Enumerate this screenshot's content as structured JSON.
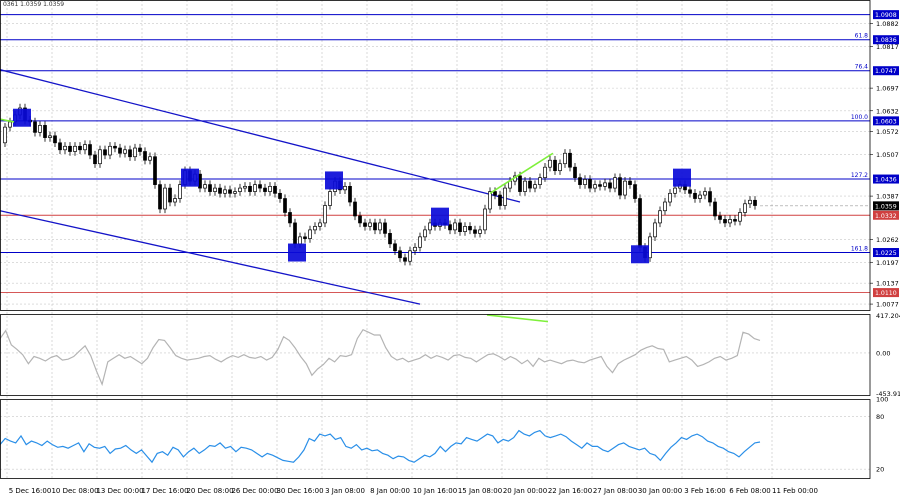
{
  "header": {
    "ohlc_text": "0361 1.0359 1.0359"
  },
  "colors": {
    "background": "#ffffff",
    "grid": "#c8c8c8",
    "level_line": "#0000c8",
    "support_line": "#d04040",
    "price_marker": "#000000",
    "candle": "#000000",
    "channel": "#1414c8",
    "box": "#0a0ad8",
    "divergence": "#7ef03a",
    "cci": "#b4b4b4",
    "rsi": "#2a8fe8"
  },
  "chart_data": [
    {
      "type": "candlestick",
      "title": "",
      "ylim": [
        1.006,
        1.095
      ],
      "yticks": [
        "1.0882",
        "1.0817",
        "1.0697",
        "1.0632",
        "1.0572",
        "1.0507",
        "1.0387",
        "1.0262",
        "1.0197",
        "1.0137",
        "1.0077"
      ],
      "xticks": [
        "5 Dec 16:00",
        "10 Dec 08:00",
        "13 Dec 00:00",
        "17 Dec 16:00",
        "20 Dec 08:00",
        "26 Dec 00:00",
        "30 Dec 16:00",
        "3 Jan 08:00",
        "8 Jan 00:00",
        "10 Jan 16:00",
        "15 Jan 08:00",
        "20 Jan 00:00",
        "22 Jan 16:00",
        "27 Jan 08:00",
        "30 Jan 00:00",
        "3 Feb 16:00",
        "6 Feb 08:00",
        "11 Feb 00:00"
      ],
      "fib_levels": [
        {
          "label": "",
          "value": 1.0908,
          "tag": "1.0908"
        },
        {
          "label": "61.8",
          "value": 1.0836,
          "tag": "1.0836"
        },
        {
          "label": "76.4",
          "value": 1.0747,
          "tag": "1.0747"
        },
        {
          "label": "100.0",
          "value": 1.0603,
          "tag": "1.0603"
        },
        {
          "label": "127.2",
          "value": 1.0436,
          "tag": "1.0436"
        },
        {
          "label": "161.8",
          "value": 1.0225,
          "tag": "1.0225"
        }
      ],
      "support_levels": [
        {
          "value": 1.0332,
          "tag": "1.0332"
        },
        {
          "value": 1.011,
          "tag": "1.0110"
        }
      ],
      "current_price": {
        "value": 1.0359,
        "tag": "1.0359"
      },
      "price_series": [
        [
          0,
          1.054
        ],
        [
          5,
          1.0585
        ],
        [
          10,
          1.06
        ],
        [
          15,
          1.062
        ],
        [
          20,
          1.064
        ],
        [
          25,
          1.0605
        ],
        [
          30,
          1.06
        ],
        [
          35,
          1.057
        ],
        [
          40,
          1.059
        ],
        [
          45,
          1.0555
        ],
        [
          50,
          1.056
        ],
        [
          55,
          1.054
        ],
        [
          60,
          1.052
        ],
        [
          65,
          1.053
        ],
        [
          70,
          1.0515
        ],
        [
          75,
          1.053
        ],
        [
          80,
          1.052
        ],
        [
          85,
          1.0535
        ],
        [
          90,
          1.0505
        ],
        [
          95,
          1.048
        ],
        [
          100,
          1.052
        ],
        [
          105,
          1.0505
        ],
        [
          110,
          1.053
        ],
        [
          115,
          1.0525
        ],
        [
          120,
          1.051
        ],
        [
          125,
          1.052
        ],
        [
          130,
          1.05
        ],
        [
          135,
          1.0525
        ],
        [
          140,
          1.0515
        ],
        [
          145,
          1.049
        ],
        [
          150,
          1.05
        ],
        [
          155,
          1.042
        ],
        [
          160,
          1.035
        ],
        [
          165,
          1.041
        ],
        [
          170,
          1.037
        ],
        [
          175,
          1.038
        ],
        [
          180,
          1.042
        ],
        [
          185,
          1.046
        ],
        [
          190,
          1.043
        ],
        [
          195,
          1.045
        ],
        [
          200,
          1.041
        ],
        [
          205,
          1.042
        ],
        [
          210,
          1.04
        ],
        [
          215,
          1.041
        ],
        [
          220,
          1.0395
        ],
        [
          225,
          1.0405
        ],
        [
          230,
          1.0395
        ],
        [
          235,
          1.04
        ],
        [
          240,
          1.041
        ],
        [
          245,
          1.0415
        ],
        [
          250,
          1.04
        ],
        [
          255,
          1.042
        ],
        [
          260,
          1.041
        ],
        [
          265,
          1.04
        ],
        [
          270,
          1.0415
        ],
        [
          275,
          1.0395
        ],
        [
          280,
          1.038
        ],
        [
          285,
          1.034
        ],
        [
          290,
          1.031
        ],
        [
          295,
          1.025
        ],
        [
          300,
          1.027
        ],
        [
          305,
          1.0265
        ],
        [
          310,
          1.029
        ],
        [
          315,
          1.03
        ],
        [
          320,
          1.031
        ],
        [
          325,
          1.036
        ],
        [
          330,
          1.04
        ],
        [
          335,
          1.043
        ],
        [
          340,
          1.0405
        ],
        [
          345,
          1.0415
        ],
        [
          350,
          1.037
        ],
        [
          355,
          1.033
        ],
        [
          360,
          1.031
        ],
        [
          365,
          1.03
        ],
        [
          370,
          1.031
        ],
        [
          375,
          1.029
        ],
        [
          380,
          1.031
        ],
        [
          385,
          1.028
        ],
        [
          390,
          1.025
        ],
        [
          395,
          1.023
        ],
        [
          400,
          1.021
        ],
        [
          405,
          1.02
        ],
        [
          410,
          1.023
        ],
        [
          415,
          1.024
        ],
        [
          420,
          1.027
        ],
        [
          425,
          1.029
        ],
        [
          430,
          1.031
        ],
        [
          435,
          1.03
        ],
        [
          440,
          1.031
        ],
        [
          445,
          1.0305
        ],
        [
          450,
          1.029
        ],
        [
          455,
          1.031
        ],
        [
          460,
          1.0285
        ],
        [
          465,
          1.03
        ],
        [
          470,
          1.029
        ],
        [
          475,
          1.028
        ],
        [
          480,
          1.029
        ],
        [
          485,
          1.035
        ],
        [
          490,
          1.04
        ],
        [
          495,
          1.039
        ],
        [
          500,
          1.036
        ],
        [
          505,
          1.041
        ],
        [
          510,
          1.043
        ],
        [
          515,
          1.0445
        ],
        [
          520,
          1.04
        ],
        [
          525,
          1.043
        ],
        [
          530,
          1.041
        ],
        [
          535,
          1.042
        ],
        [
          540,
          1.044
        ],
        [
          545,
          1.047
        ],
        [
          550,
          1.049
        ],
        [
          555,
          1.046
        ],
        [
          560,
          1.048
        ],
        [
          565,
          1.051
        ],
        [
          570,
          1.047
        ],
        [
          575,
          1.044
        ],
        [
          580,
          1.042
        ],
        [
          585,
          1.0435
        ],
        [
          590,
          1.041
        ],
        [
          595,
          1.042
        ],
        [
          600,
          1.0415
        ],
        [
          605,
          1.0425
        ],
        [
          610,
          1.041
        ],
        [
          615,
          1.044
        ],
        [
          620,
          1.039
        ],
        [
          625,
          1.043
        ],
        [
          630,
          1.042
        ],
        [
          635,
          1.038
        ],
        [
          640,
          1.024
        ],
        [
          645,
          1.021
        ],
        [
          650,
          1.027
        ],
        [
          655,
          1.031
        ],
        [
          660,
          1.0345
        ],
        [
          665,
          1.037
        ],
        [
          670,
          1.0395
        ],
        [
          675,
          1.041
        ],
        [
          680,
          1.042
        ],
        [
          685,
          1.0405
        ],
        [
          690,
          1.0395
        ],
        [
          695,
          1.038
        ],
        [
          700,
          1.039
        ],
        [
          705,
          1.04
        ],
        [
          710,
          1.037
        ],
        [
          715,
          1.033
        ],
        [
          720,
          1.032
        ],
        [
          725,
          1.031
        ],
        [
          730,
          1.032
        ],
        [
          735,
          1.0315
        ],
        [
          740,
          1.034
        ],
        [
          745,
          1.0365
        ],
        [
          750,
          1.0375
        ],
        [
          755,
          1.036
        ]
      ],
      "channel_lines": [
        {
          "from": [
            0,
            1.075
          ],
          "to": [
            520,
            1.037
          ]
        },
        {
          "from": [
            0,
            1.0345
          ],
          "to": [
            420,
            1.0077
          ]
        }
      ],
      "marker_boxes": [
        {
          "x": 22,
          "y": 1.0612
        },
        {
          "x": 190,
          "y": 1.044
        },
        {
          "x": 334,
          "y": 1.0432
        },
        {
          "x": 297,
          "y": 1.0225
        },
        {
          "x": 440,
          "y": 1.0328
        },
        {
          "x": 640,
          "y": 1.022
        },
        {
          "x": 682,
          "y": 1.044
        }
      ],
      "divergence_lines": [
        {
          "from": [
            490,
            1.0395
          ],
          "to": [
            553,
            1.051
          ]
        },
        {
          "from": [
            0,
            1.0608
          ],
          "to": [
            14,
            1.06
          ]
        }
      ]
    },
    {
      "type": "line",
      "title": "",
      "ylim": [
        -470,
        435
      ],
      "yticks": [
        "417.2044",
        "0.00",
        "-453.913"
      ],
      "series": [
        {
          "values": [
            160,
            250,
            90,
            40,
            -20,
            -120,
            -40,
            -60,
            -90,
            -50,
            -30,
            -80,
            -70,
            -40,
            20,
            80,
            -30,
            -200,
            -350,
            -100,
            -60,
            -20,
            -60,
            -40,
            -80,
            -120,
            -60,
            60,
            150,
            140,
            60,
            -30,
            -60,
            -80,
            -70,
            -60,
            -40,
            -30,
            -70,
            -100,
            -60,
            -30,
            -50,
            -20,
            -50,
            -60,
            -40,
            -80,
            -50,
            40,
            180,
            140,
            60,
            -40,
            -120,
            -250,
            -180,
            -130,
            -60,
            -100,
            -30,
            -40,
            -20,
            160,
            260,
            230,
            200,
            200,
            60,
            -40,
            -80,
            -60,
            -100,
            -80,
            -60,
            -20,
            -60,
            -30,
            -50,
            -80,
            -30,
            -20,
            -50,
            -60,
            -100,
            -60,
            -20,
            -10,
            -40,
            -80,
            -40,
            -70,
            -120,
            -80,
            -150,
            -60,
            -100,
            -80,
            -100,
            -120,
            -90,
            -80,
            -100,
            -110,
            -80,
            -60,
            -40,
            -150,
            -220,
            -120,
            -80,
            -50,
            -20,
            30,
            60,
            80,
            50,
            40,
            -100,
            -80,
            -60,
            -40,
            -80,
            -150,
            -130,
            -100,
            -60,
            -40,
            -80,
            -60,
            -30,
            230,
            210,
            160,
            140
          ]
        }
      ]
    },
    {
      "type": "line",
      "title": "",
      "ylim": [
        10,
        100
      ],
      "yticks": [
        "100",
        "80",
        "20"
      ],
      "series": [
        {
          "values": [
            48,
            55,
            52,
            50,
            58,
            48,
            52,
            50,
            47,
            52,
            48,
            45,
            46,
            44,
            47,
            50,
            40,
            49,
            45,
            44,
            46,
            38,
            43,
            44,
            47,
            42,
            38,
            42,
            35,
            28,
            38,
            40,
            36,
            45,
            42,
            34,
            40,
            44,
            38,
            42,
            47,
            46,
            50,
            44,
            46,
            40,
            45,
            44,
            42,
            38,
            34,
            38,
            36,
            33,
            30,
            29,
            28,
            34,
            42,
            55,
            52,
            60,
            58,
            60,
            54,
            56,
            46,
            44,
            48,
            42,
            44,
            41,
            42,
            38,
            36,
            32,
            35,
            34,
            30,
            28,
            32,
            36,
            34,
            38,
            46,
            40,
            46,
            50,
            49,
            56,
            54,
            52,
            56,
            60,
            58,
            50,
            54,
            52,
            56,
            64,
            60,
            58,
            62,
            64,
            58,
            56,
            58,
            60,
            57,
            52,
            48,
            44,
            50,
            46,
            46,
            42,
            40,
            44,
            48,
            50,
            46,
            44,
            42,
            44,
            38,
            36,
            30,
            38,
            45,
            50,
            56,
            54,
            58,
            60,
            57,
            52,
            50,
            46,
            44,
            40,
            38,
            34,
            40,
            45,
            50,
            51
          ]
        }
      ]
    }
  ]
}
